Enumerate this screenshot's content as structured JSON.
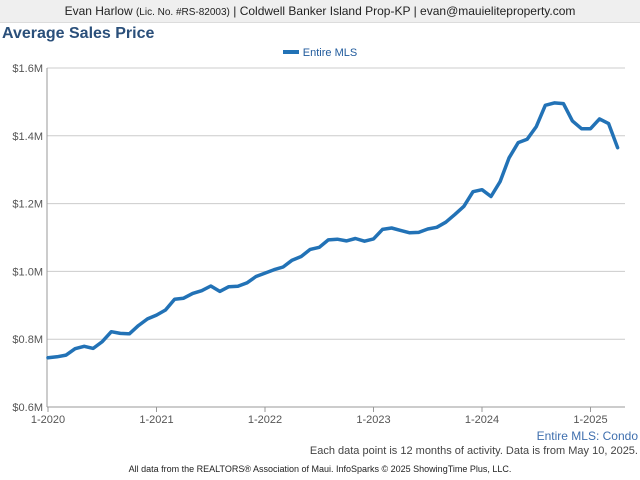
{
  "header": {
    "agent_name": "Evan Harlow",
    "license": "(Lic. No. #RS-82003)",
    "brokerage": "Coldwell Banker Island Prop-KP",
    "email": "evan@mauieliteproperty.com",
    "separator": "|"
  },
  "chart_title": "Average Sales Price",
  "legend_label": "Entire MLS",
  "subset_label": "Entire MLS: Condo",
  "note": "Each data point is 12 months of activity. Data is from May 10, 2025.",
  "footer": "All data from the REALTORS® Association of Maui. InfoSparks © 2025 ShowingTime Plus, LLC.",
  "colors": {
    "line": "#2272b6",
    "title": "#2a4f7a",
    "grid": "#cccccc"
  },
  "chart_data": {
    "type": "line",
    "title": "Average Sales Price",
    "xlabel": "",
    "ylabel": "",
    "x_tick_labels": [
      "1-2020",
      "1-2021",
      "1-2022",
      "1-2023",
      "1-2024",
      "1-2025"
    ],
    "y_tick_labels": [
      "$0.6M",
      "$0.8M",
      "$1.0M",
      "$1.2M",
      "$1.4M",
      "$1.6M"
    ],
    "ylim": [
      0.6,
      1.6
    ],
    "grid": true,
    "legend_position": "top-center",
    "series": [
      {
        "name": "Entire MLS",
        "x": [
          "2020-01",
          "2020-02",
          "2020-03",
          "2020-04",
          "2020-05",
          "2020-06",
          "2020-07",
          "2020-08",
          "2020-09",
          "2020-10",
          "2020-11",
          "2020-12",
          "2021-01",
          "2021-02",
          "2021-03",
          "2021-04",
          "2021-05",
          "2021-06",
          "2021-07",
          "2021-08",
          "2021-09",
          "2021-10",
          "2021-11",
          "2021-12",
          "2022-01",
          "2022-02",
          "2022-03",
          "2022-04",
          "2022-05",
          "2022-06",
          "2022-07",
          "2022-08",
          "2022-09",
          "2022-10",
          "2022-11",
          "2022-12",
          "2023-01",
          "2023-02",
          "2023-03",
          "2023-04",
          "2023-05",
          "2023-06",
          "2023-07",
          "2023-08",
          "2023-09",
          "2023-10",
          "2023-11",
          "2023-12",
          "2024-01",
          "2024-02",
          "2024-03",
          "2024-04",
          "2024-05",
          "2024-06",
          "2024-07",
          "2024-08",
          "2024-09",
          "2024-10",
          "2024-11",
          "2024-12",
          "2025-01",
          "2025-02",
          "2025-03",
          "2025-04"
        ],
        "values": [
          0.745,
          0.748,
          0.753,
          0.772,
          0.779,
          0.773,
          0.793,
          0.822,
          0.817,
          0.816,
          0.84,
          0.86,
          0.871,
          0.886,
          0.918,
          0.921,
          0.935,
          0.943,
          0.957,
          0.941,
          0.955,
          0.956,
          0.966,
          0.985,
          0.995,
          1.005,
          1.013,
          1.033,
          1.044,
          1.065,
          1.071,
          1.093,
          1.095,
          1.09,
          1.097,
          1.089,
          1.096,
          1.124,
          1.128,
          1.121,
          1.114,
          1.115,
          1.125,
          1.13,
          1.145,
          1.168,
          1.192,
          1.235,
          1.241,
          1.221,
          1.265,
          1.335,
          1.38,
          1.39,
          1.427,
          1.49,
          1.497,
          1.495,
          1.444,
          1.421,
          1.421,
          1.45,
          1.436,
          1.365
        ]
      }
    ]
  }
}
